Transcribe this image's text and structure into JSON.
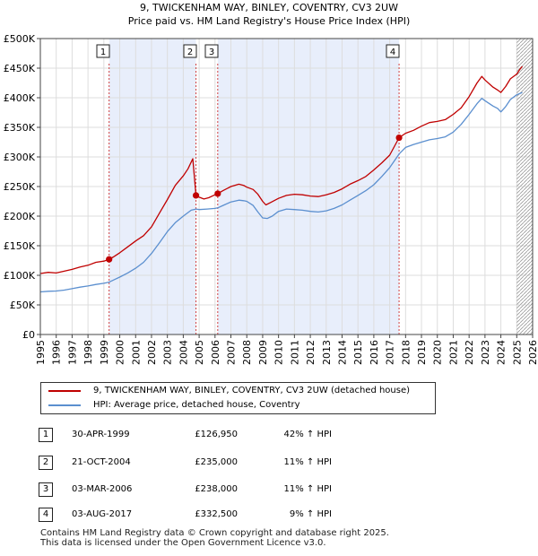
{
  "chart_data": {
    "type": "line",
    "title": "9, TWICKENHAM WAY, BINLEY, COVENTRY, CV3 2UW",
    "subtitle": "Price paid vs. HM Land Registry's House Price Index (HPI)",
    "xlim": [
      1995,
      2026
    ],
    "ylim": [
      0,
      500000
    ],
    "x_ticks": [
      "1995",
      "1996",
      "1997",
      "1998",
      "1999",
      "2000",
      "2001",
      "2002",
      "2003",
      "2004",
      "2005",
      "2006",
      "2007",
      "2008",
      "2009",
      "2010",
      "2011",
      "2012",
      "2013",
      "2014",
      "2015",
      "2016",
      "2017",
      "2018",
      "2019",
      "2020",
      "2021",
      "2022",
      "2023",
      "2024",
      "2025",
      "2026"
    ],
    "y_ticks": [
      0,
      50000,
      100000,
      150000,
      200000,
      250000,
      300000,
      350000,
      400000,
      450000,
      500000
    ],
    "y_tick_labels": [
      "£0",
      "£50K",
      "£100K",
      "£150K",
      "£200K",
      "£250K",
      "£300K",
      "£350K",
      "£400K",
      "£450K",
      "£500K"
    ],
    "shaded_periods": [
      [
        1999.33,
        2004.8
      ],
      [
        2006.17,
        2017.59
      ]
    ],
    "future_hatch_from": 2025.0,
    "series": [
      {
        "name": "9, TWICKENHAM WAY, BINLEY, COVENTRY, CV3 2UW (detached house)",
        "color": "#c00000",
        "points": [
          [
            1995.0,
            103000
          ],
          [
            1995.5,
            105000
          ],
          [
            1996.0,
            104000
          ],
          [
            1996.5,
            107000
          ],
          [
            1997.0,
            110000
          ],
          [
            1997.5,
            114000
          ],
          [
            1998.0,
            117000
          ],
          [
            1998.5,
            122000
          ],
          [
            1999.0,
            124000
          ],
          [
            1999.33,
            126950
          ],
          [
            1999.6,
            131000
          ],
          [
            2000.0,
            138000
          ],
          [
            2000.5,
            148000
          ],
          [
            2001.0,
            158000
          ],
          [
            2001.5,
            167000
          ],
          [
            2002.0,
            182000
          ],
          [
            2002.5,
            205000
          ],
          [
            2003.0,
            228000
          ],
          [
            2003.5,
            252000
          ],
          [
            2004.0,
            268000
          ],
          [
            2004.3,
            280000
          ],
          [
            2004.6,
            297000
          ],
          [
            2004.8,
            235000
          ],
          [
            2005.0,
            232000
          ],
          [
            2005.3,
            229000
          ],
          [
            2005.6,
            231000
          ],
          [
            2006.0,
            236000
          ],
          [
            2006.17,
            238000
          ],
          [
            2006.5,
            243000
          ],
          [
            2007.0,
            250000
          ],
          [
            2007.5,
            254000
          ],
          [
            2007.8,
            252000
          ],
          [
            2008.0,
            249000
          ],
          [
            2008.4,
            245000
          ],
          [
            2008.7,
            237000
          ],
          [
            2009.0,
            225000
          ],
          [
            2009.2,
            219000
          ],
          [
            2009.5,
            223000
          ],
          [
            2010.0,
            230000
          ],
          [
            2010.5,
            235000
          ],
          [
            2011.0,
            237000
          ],
          [
            2011.5,
            236000
          ],
          [
            2012.0,
            234000
          ],
          [
            2012.5,
            233000
          ],
          [
            2013.0,
            236000
          ],
          [
            2013.5,
            240000
          ],
          [
            2014.0,
            246000
          ],
          [
            2014.5,
            254000
          ],
          [
            2015.0,
            260000
          ],
          [
            2015.5,
            267000
          ],
          [
            2016.0,
            278000
          ],
          [
            2016.5,
            290000
          ],
          [
            2017.0,
            303000
          ],
          [
            2017.59,
            332500
          ],
          [
            2018.0,
            340000
          ],
          [
            2018.5,
            345000
          ],
          [
            2019.0,
            352000
          ],
          [
            2019.5,
            358000
          ],
          [
            2020.0,
            360000
          ],
          [
            2020.5,
            363000
          ],
          [
            2021.0,
            372000
          ],
          [
            2021.5,
            383000
          ],
          [
            2022.0,
            402000
          ],
          [
            2022.5,
            425000
          ],
          [
            2022.8,
            436000
          ],
          [
            2023.0,
            430000
          ],
          [
            2023.5,
            418000
          ],
          [
            2023.8,
            413000
          ],
          [
            2024.0,
            409000
          ],
          [
            2024.3,
            419000
          ],
          [
            2024.6,
            432000
          ],
          [
            2025.0,
            440000
          ],
          [
            2025.2,
            448000
          ],
          [
            2025.35,
            453000
          ]
        ]
      },
      {
        "name": "HPI: Average price, detached house, Coventry",
        "color": "#5b8fcf",
        "points": [
          [
            1995.0,
            72000
          ],
          [
            1995.5,
            73000
          ],
          [
            1996.0,
            73500
          ],
          [
            1996.5,
            75000
          ],
          [
            1997.0,
            77500
          ],
          [
            1997.5,
            80000
          ],
          [
            1998.0,
            82000
          ],
          [
            1998.5,
            84500
          ],
          [
            1999.0,
            86500
          ],
          [
            1999.33,
            88500
          ],
          [
            1999.6,
            92000
          ],
          [
            2000.0,
            97000
          ],
          [
            2000.5,
            104000
          ],
          [
            2001.0,
            112000
          ],
          [
            2001.5,
            122000
          ],
          [
            2002.0,
            137000
          ],
          [
            2002.5,
            155000
          ],
          [
            2003.0,
            174000
          ],
          [
            2003.5,
            189000
          ],
          [
            2004.0,
            200000
          ],
          [
            2004.5,
            210000
          ],
          [
            2004.8,
            212000
          ],
          [
            2005.0,
            211000
          ],
          [
            2005.5,
            212000
          ],
          [
            2006.0,
            213000
          ],
          [
            2006.17,
            214000
          ],
          [
            2006.5,
            218000
          ],
          [
            2007.0,
            224000
          ],
          [
            2007.5,
            227000
          ],
          [
            2007.8,
            226000
          ],
          [
            2008.0,
            225000
          ],
          [
            2008.4,
            218000
          ],
          [
            2008.7,
            207000
          ],
          [
            2009.0,
            197000
          ],
          [
            2009.3,
            196000
          ],
          [
            2009.6,
            200000
          ],
          [
            2010.0,
            208000
          ],
          [
            2010.5,
            212000
          ],
          [
            2011.0,
            211000
          ],
          [
            2011.5,
            210000
          ],
          [
            2012.0,
            208000
          ],
          [
            2012.5,
            207000
          ],
          [
            2013.0,
            209000
          ],
          [
            2013.5,
            213000
          ],
          [
            2014.0,
            219000
          ],
          [
            2014.5,
            227000
          ],
          [
            2015.0,
            235000
          ],
          [
            2015.5,
            243000
          ],
          [
            2016.0,
            253000
          ],
          [
            2016.5,
            267000
          ],
          [
            2017.0,
            282000
          ],
          [
            2017.59,
            305000
          ],
          [
            2018.0,
            316000
          ],
          [
            2018.5,
            321000
          ],
          [
            2019.0,
            325000
          ],
          [
            2019.5,
            329000
          ],
          [
            2020.0,
            331000
          ],
          [
            2020.5,
            334000
          ],
          [
            2021.0,
            342000
          ],
          [
            2021.5,
            355000
          ],
          [
            2022.0,
            372000
          ],
          [
            2022.5,
            390000
          ],
          [
            2022.8,
            399000
          ],
          [
            2023.0,
            395000
          ],
          [
            2023.5,
            386000
          ],
          [
            2023.8,
            382000
          ],
          [
            2024.0,
            376000
          ],
          [
            2024.3,
            385000
          ],
          [
            2024.6,
            397000
          ],
          [
            2025.0,
            405000
          ],
          [
            2025.35,
            409000
          ]
        ]
      }
    ],
    "sales": [
      {
        "num": "1",
        "x": 1999.33,
        "price_value": 126950
      },
      {
        "num": "2",
        "x": 2004.8,
        "price_value": 235000
      },
      {
        "num": "3",
        "x": 2006.17,
        "price_value": 238000
      },
      {
        "num": "4",
        "x": 2017.59,
        "price_value": 332500
      }
    ]
  },
  "legend": {
    "property_label": "9, TWICKENHAM WAY, BINLEY, COVENTRY, CV3 2UW (detached house)",
    "hpi_label": "HPI: Average price, detached house, Coventry"
  },
  "sales_table": [
    {
      "num": "1",
      "date": "30-APR-1999",
      "price": "£126,950",
      "hpi": "42% ↑ HPI"
    },
    {
      "num": "2",
      "date": "21-OCT-2004",
      "price": "£235,000",
      "hpi": "11% ↑ HPI"
    },
    {
      "num": "3",
      "date": "03-MAR-2006",
      "price": "£238,000",
      "hpi": "11% ↑ HPI"
    },
    {
      "num": "4",
      "date": "03-AUG-2017",
      "price": "£332,500",
      "hpi": "9% ↑ HPI"
    }
  ],
  "footer": {
    "line1": "Contains HM Land Registry data © Crown copyright and database right 2025.",
    "line2": "This data is licensed under the Open Government Licence v3.0."
  },
  "colors": {
    "property": "#c00000",
    "hpi": "#5b8fcf",
    "shade": "#e8eefb",
    "grid": "#dddddd"
  }
}
